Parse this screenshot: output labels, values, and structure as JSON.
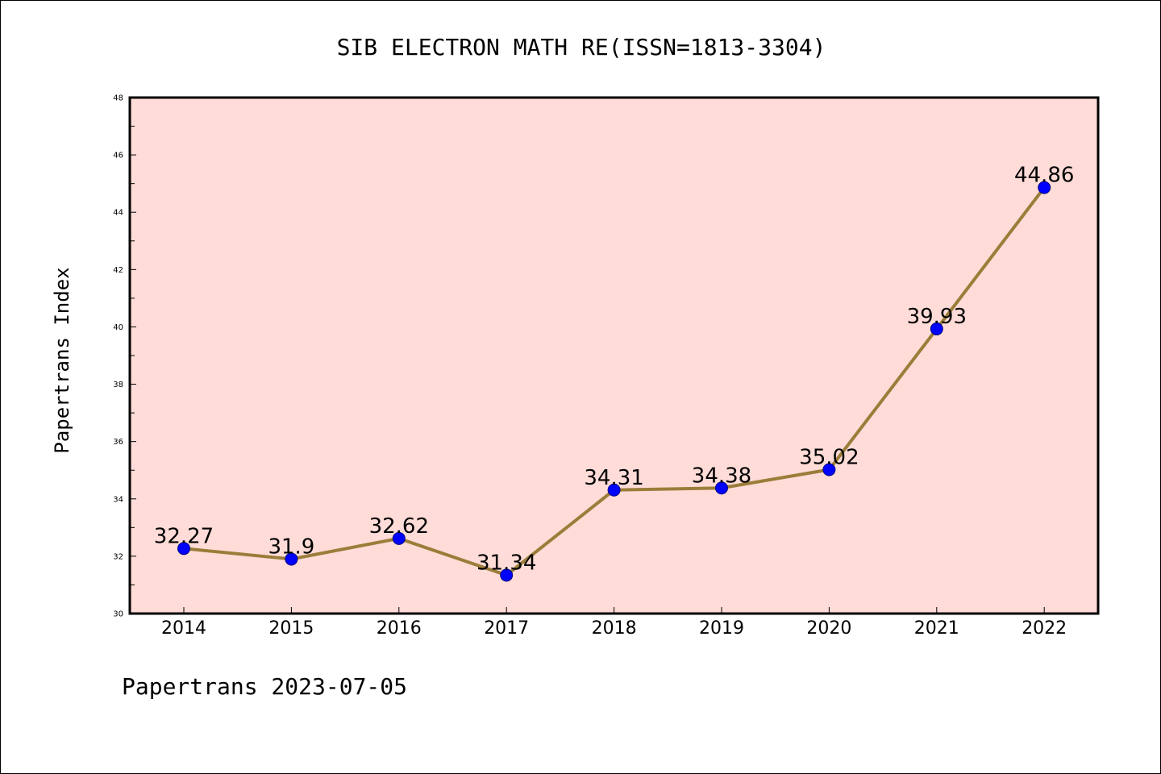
{
  "chart_data": {
    "type": "line",
    "title": "SIB ELECTRON MATH RE(ISSN=1813-3304)",
    "xlabel": "",
    "ylabel": "Papertrans Index",
    "categories": [
      "2014",
      "2015",
      "2016",
      "2017",
      "2018",
      "2019",
      "2020",
      "2021",
      "2022"
    ],
    "series": [
      {
        "values": [
          32.27,
          31.9,
          32.62,
          31.34,
          34.31,
          34.38,
          35.02,
          39.93,
          44.86
        ],
        "labels": [
          "32.27",
          "31.9",
          "32.62",
          "31.34",
          "34.31",
          "34.38",
          "35.02",
          "39.93",
          "44.86"
        ]
      }
    ],
    "ylim": [
      30,
      48
    ],
    "yticks": [
      30,
      32,
      34,
      36,
      38,
      40,
      42,
      44,
      46,
      48
    ],
    "ytick_labels": [
      "30",
      "32",
      "34",
      "36",
      "38",
      "40",
      "42",
      "44",
      "46",
      "48"
    ],
    "grid": false,
    "legend": "none",
    "colors": {
      "plot_background": "#FFDCD8",
      "line": "#9B7D3A",
      "marker_fill": "#0000FF",
      "marker_edge": "#000080"
    }
  },
  "footer": {
    "text": "Papertrans 2023-07-05"
  }
}
